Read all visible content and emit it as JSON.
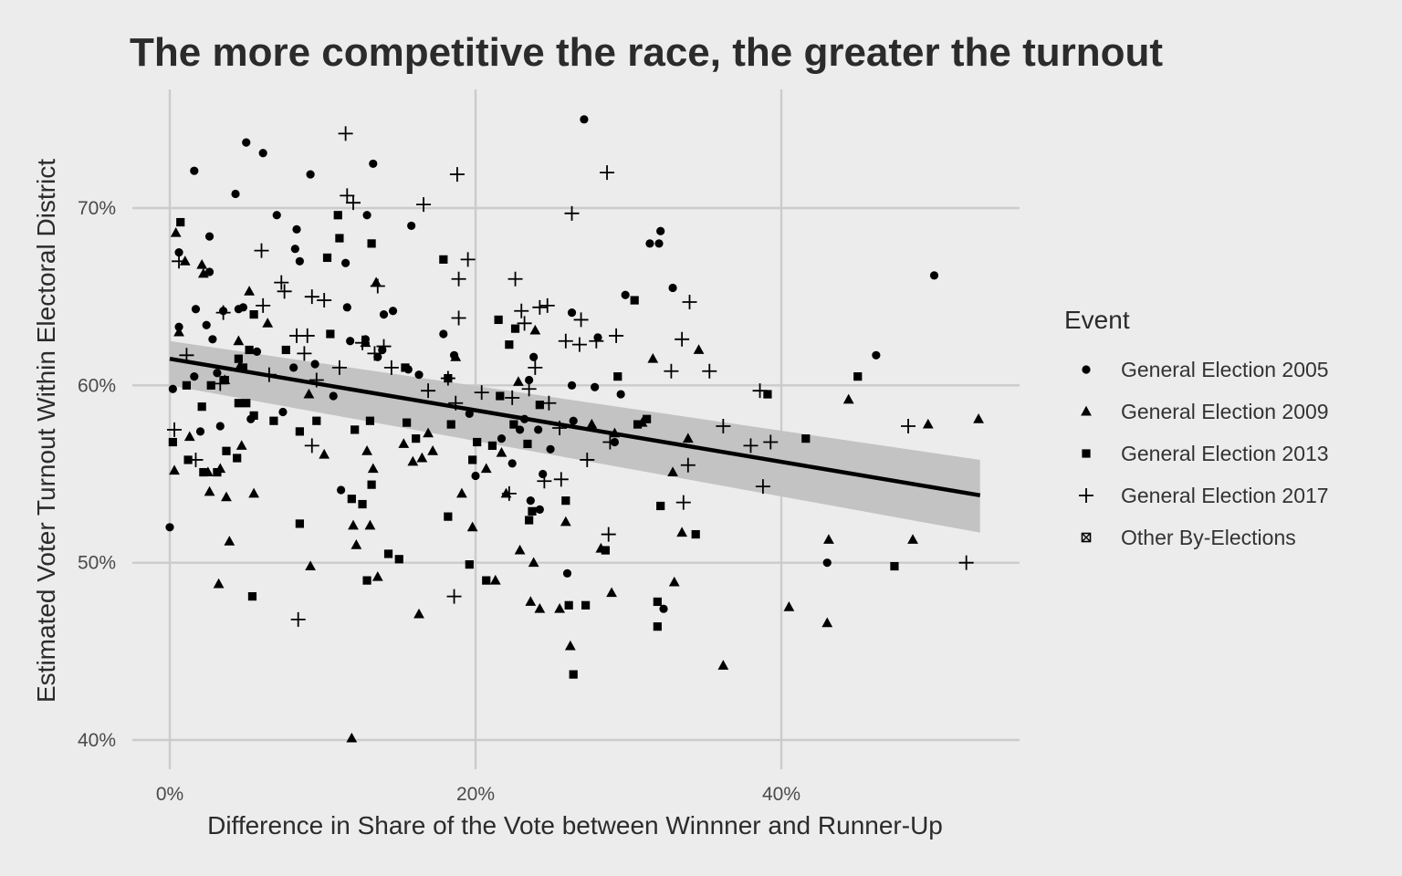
{
  "chart_data": {
    "type": "scatter",
    "title": "The more competitive the race, the greater the turnout",
    "xlabel": "Difference in Share of the Vote between Winnner and Runner-Up",
    "ylabel": "Estimated Voter Turnout Within Electoral District",
    "xlim": [
      0,
      55
    ],
    "ylim": [
      40,
      75
    ],
    "x_ticks": [
      0,
      20,
      40
    ],
    "x_tick_labels": [
      "0%",
      "20%",
      "40%"
    ],
    "y_ticks": [
      40,
      50,
      60,
      70
    ],
    "y_tick_labels": [
      "40%",
      "50%",
      "60%",
      "70%"
    ],
    "grid": true,
    "legend": {
      "title": "Event",
      "placement": "right",
      "entries": [
        {
          "label": "General Election 2005",
          "shape": "circle"
        },
        {
          "label": "General Election 2009",
          "shape": "triangle"
        },
        {
          "label": "General Election 2013",
          "shape": "square"
        },
        {
          "label": "General Election 2017",
          "shape": "plus"
        },
        {
          "label": "Other By-Elections",
          "shape": "boxed-x"
        }
      ]
    },
    "trend": {
      "method": "linear",
      "x": [
        0,
        53
      ],
      "y": [
        61.5,
        53.8
      ],
      "ci_lower": [
        60.0,
        51.7
      ],
      "ci_upper": [
        62.5,
        55.8
      ]
    },
    "colors": {
      "background": "#ececec",
      "points": "#000000",
      "ribbon": "#c3c3c3",
      "grid": "#cbcbcb"
    },
    "series": [
      {
        "name": "General Election 2005",
        "shape": "circle",
        "points": [
          [
            0,
            52
          ],
          [
            0.2,
            59.8
          ],
          [
            0.6,
            63.3
          ],
          [
            0.6,
            67.5
          ],
          [
            1.6,
            72.1
          ],
          [
            1.6,
            60.5
          ],
          [
            1.7,
            64.3
          ],
          [
            2,
            57.4
          ],
          [
            2.4,
            63.4
          ],
          [
            2.6,
            66.4
          ],
          [
            2.6,
            68.4
          ],
          [
            2.8,
            62.6
          ],
          [
            3.1,
            60.7
          ],
          [
            3.3,
            57.7
          ],
          [
            3.5,
            64.2
          ],
          [
            4.3,
            70.8
          ],
          [
            4.5,
            64.3
          ],
          [
            4.8,
            64.4
          ],
          [
            5.0,
            73.7
          ],
          [
            5.3,
            58.1
          ],
          [
            5.7,
            61.9
          ],
          [
            6.1,
            73.1
          ],
          [
            7.0,
            69.6
          ],
          [
            7.4,
            58.5
          ],
          [
            8.1,
            61.0
          ],
          [
            8.2,
            67.7
          ],
          [
            8.3,
            68.8
          ],
          [
            8.5,
            67.0
          ],
          [
            9.2,
            71.9
          ],
          [
            9.5,
            61.2
          ],
          [
            10.7,
            59.4
          ],
          [
            11.2,
            54.1
          ],
          [
            11.5,
            66.9
          ],
          [
            11.6,
            64.4
          ],
          [
            11.8,
            62.5
          ],
          [
            12.8,
            62.6
          ],
          [
            12.9,
            69.6
          ],
          [
            13.3,
            72.5
          ],
          [
            13.6,
            61.6
          ],
          [
            13.9,
            62.0
          ],
          [
            14.0,
            64.0
          ],
          [
            14.6,
            64.2
          ],
          [
            15.6,
            60.9
          ],
          [
            15.8,
            69.0
          ],
          [
            16.3,
            60.6
          ],
          [
            17.9,
            62.9
          ],
          [
            18.6,
            61.7
          ],
          [
            19.6,
            58.4
          ],
          [
            20.0,
            54.9
          ],
          [
            21.7,
            57.0
          ],
          [
            22.4,
            55.6
          ],
          [
            22.9,
            57.5
          ],
          [
            23.2,
            58.1
          ],
          [
            23.5,
            60.3
          ],
          [
            23.6,
            53.5
          ],
          [
            23.8,
            61.6
          ],
          [
            24.1,
            57.5
          ],
          [
            24.2,
            53.0
          ],
          [
            24.4,
            55.0
          ],
          [
            24.9,
            56.4
          ],
          [
            26.0,
            49.4
          ],
          [
            26.3,
            60.0
          ],
          [
            26.3,
            64.1
          ],
          [
            26.4,
            58.0
          ],
          [
            27.1,
            75.0
          ],
          [
            27.8,
            59.9
          ],
          [
            28.0,
            62.7
          ],
          [
            29.1,
            56.8
          ],
          [
            29.5,
            59.5
          ],
          [
            29.8,
            65.1
          ],
          [
            31.4,
            68.0
          ],
          [
            32.0,
            68.0
          ],
          [
            32.1,
            68.7
          ],
          [
            32.3,
            47.4
          ],
          [
            32.9,
            65.5
          ],
          [
            43.0,
            50.0
          ],
          [
            46.2,
            61.7
          ],
          [
            50.0,
            66.2
          ]
        ]
      },
      {
        "name": "General Election 2009",
        "shape": "triangle",
        "points": [
          [
            0.3,
            55.2
          ],
          [
            0.4,
            68.6
          ],
          [
            0.6,
            63.0
          ],
          [
            1.0,
            67.0
          ],
          [
            1.3,
            57.1
          ],
          [
            2.1,
            66.8
          ],
          [
            2.2,
            66.3
          ],
          [
            2.5,
            55.1
          ],
          [
            2.6,
            54.0
          ],
          [
            3.2,
            48.8
          ],
          [
            3.3,
            55.3
          ],
          [
            3.6,
            60.3
          ],
          [
            3.7,
            53.7
          ],
          [
            3.9,
            51.2
          ],
          [
            4.5,
            62.5
          ],
          [
            4.6,
            61.1
          ],
          [
            4.7,
            56.6
          ],
          [
            5.2,
            65.3
          ],
          [
            5.5,
            53.9
          ],
          [
            6.4,
            63.5
          ],
          [
            9.1,
            59.5
          ],
          [
            9.2,
            49.8
          ],
          [
            10.1,
            56.1
          ],
          [
            11.9,
            40.1
          ],
          [
            12.0,
            52.1
          ],
          [
            12.2,
            51.0
          ],
          [
            12.8,
            62.4
          ],
          [
            12.9,
            56.3
          ],
          [
            13.1,
            52.1
          ],
          [
            13.3,
            55.3
          ],
          [
            13.5,
            65.8
          ],
          [
            13.6,
            49.2
          ],
          [
            15.3,
            56.7
          ],
          [
            15.9,
            55.7
          ],
          [
            16.3,
            47.1
          ],
          [
            16.5,
            55.9
          ],
          [
            16.9,
            57.3
          ],
          [
            17.2,
            56.3
          ],
          [
            18.7,
            61.6
          ],
          [
            19.1,
            53.9
          ],
          [
            19.8,
            52.0
          ],
          [
            20.7,
            55.3
          ],
          [
            21.3,
            49.0
          ],
          [
            21.7,
            56.2
          ],
          [
            22.0,
            53.9
          ],
          [
            22.8,
            60.2
          ],
          [
            22.9,
            50.7
          ],
          [
            23.6,
            47.8
          ],
          [
            23.8,
            50.0
          ],
          [
            23.9,
            63.1
          ],
          [
            24.2,
            47.4
          ],
          [
            25.5,
            47.4
          ],
          [
            25.9,
            52.3
          ],
          [
            26.2,
            45.3
          ],
          [
            27.6,
            57.8
          ],
          [
            28.2,
            50.8
          ],
          [
            28.9,
            48.3
          ],
          [
            29.1,
            57.3
          ],
          [
            30.9,
            57.9
          ],
          [
            31.6,
            61.5
          ],
          [
            32.9,
            55.1
          ],
          [
            33.0,
            48.9
          ],
          [
            33.5,
            51.7
          ],
          [
            33.9,
            57.0
          ],
          [
            34.6,
            62.0
          ],
          [
            36.2,
            44.2
          ],
          [
            40.5,
            47.5
          ],
          [
            43.0,
            46.6
          ],
          [
            43.1,
            51.3
          ],
          [
            44.4,
            59.2
          ],
          [
            48.6,
            51.3
          ],
          [
            49.6,
            57.8
          ],
          [
            52.9,
            58.1
          ]
        ]
      },
      {
        "name": "General Election 2013",
        "shape": "square",
        "points": [
          [
            0.2,
            56.8
          ],
          [
            0.7,
            69.2
          ],
          [
            1.1,
            60.0
          ],
          [
            1.2,
            55.8
          ],
          [
            2.1,
            58.8
          ],
          [
            2.2,
            55.1
          ],
          [
            2.7,
            60.0
          ],
          [
            3.1,
            55.1
          ],
          [
            3.6,
            60.3
          ],
          [
            3.7,
            56.3
          ],
          [
            4.4,
            55.9
          ],
          [
            4.5,
            59.0
          ],
          [
            4.5,
            61.5
          ],
          [
            4.8,
            61.0
          ],
          [
            5.0,
            59.0
          ],
          [
            5.2,
            62.0
          ],
          [
            5.4,
            48.1
          ],
          [
            5.5,
            58.3
          ],
          [
            5.5,
            64.0
          ],
          [
            6.8,
            58.0
          ],
          [
            7.6,
            62.0
          ],
          [
            8.5,
            52.2
          ],
          [
            8.5,
            57.4
          ],
          [
            9.6,
            58.0
          ],
          [
            10.3,
            67.2
          ],
          [
            10.5,
            62.9
          ],
          [
            11.0,
            69.6
          ],
          [
            11.1,
            68.3
          ],
          [
            11.9,
            53.6
          ],
          [
            12.1,
            57.5
          ],
          [
            12.6,
            53.3
          ],
          [
            12.9,
            49.0
          ],
          [
            13.1,
            58.0
          ],
          [
            13.2,
            54.4
          ],
          [
            13.2,
            68.0
          ],
          [
            14.3,
            50.5
          ],
          [
            15.0,
            50.2
          ],
          [
            15.4,
            61.0
          ],
          [
            15.5,
            57.9
          ],
          [
            16.1,
            57.0
          ],
          [
            17.9,
            67.1
          ],
          [
            18.2,
            52.6
          ],
          [
            18.2,
            60.4
          ],
          [
            18.4,
            57.8
          ],
          [
            19.6,
            49.9
          ],
          [
            19.8,
            55.8
          ],
          [
            20.1,
            56.8
          ],
          [
            20.7,
            49.0
          ],
          [
            21.1,
            56.6
          ],
          [
            21.5,
            63.7
          ],
          [
            21.6,
            59.4
          ],
          [
            22.2,
            62.3
          ],
          [
            22.5,
            57.8
          ],
          [
            22.6,
            63.2
          ],
          [
            23.4,
            56.7
          ],
          [
            23.5,
            52.4
          ],
          [
            23.7,
            52.9
          ],
          [
            24.2,
            58.9
          ],
          [
            25.9,
            53.5
          ],
          [
            26.1,
            47.6
          ],
          [
            26.4,
            43.7
          ],
          [
            27.2,
            47.6
          ],
          [
            28.5,
            50.7
          ],
          [
            29.3,
            60.5
          ],
          [
            30.4,
            64.8
          ],
          [
            30.6,
            57.8
          ],
          [
            31.2,
            58.1
          ],
          [
            31.9,
            46.4
          ],
          [
            31.9,
            47.8
          ],
          [
            32.1,
            53.2
          ],
          [
            34.4,
            51.6
          ],
          [
            39.1,
            59.5
          ],
          [
            41.6,
            57.0
          ],
          [
            45.0,
            60.5
          ],
          [
            47.4,
            49.8
          ]
        ]
      },
      {
        "name": "General Election 2017",
        "shape": "plus",
        "points": [
          [
            0.3,
            57.5
          ],
          [
            0.6,
            67.0
          ],
          [
            1.1,
            61.7
          ],
          [
            1.7,
            55.8
          ],
          [
            3.3,
            60.1
          ],
          [
            3.5,
            64.1
          ],
          [
            6.0,
            67.6
          ],
          [
            6.1,
            64.5
          ],
          [
            6.5,
            60.6
          ],
          [
            7.3,
            65.8
          ],
          [
            7.5,
            65.3
          ],
          [
            8.3,
            62.8
          ],
          [
            8.4,
            46.8
          ],
          [
            8.8,
            61.8
          ],
          [
            9.0,
            62.8
          ],
          [
            9.3,
            65.0
          ],
          [
            9.3,
            56.6
          ],
          [
            9.6,
            60.3
          ],
          [
            10.1,
            64.8
          ],
          [
            11.1,
            61.0
          ],
          [
            11.5,
            74.2
          ],
          [
            11.6,
            70.7
          ],
          [
            12.0,
            70.3
          ],
          [
            12.6,
            62.4
          ],
          [
            13.4,
            61.8
          ],
          [
            13.6,
            65.6
          ],
          [
            14.0,
            62.2
          ],
          [
            14.5,
            61.0
          ],
          [
            16.6,
            70.2
          ],
          [
            16.9,
            59.7
          ],
          [
            18.2,
            60.4
          ],
          [
            18.6,
            48.1
          ],
          [
            18.7,
            59.0
          ],
          [
            18.8,
            71.9
          ],
          [
            18.9,
            66.0
          ],
          [
            18.9,
            63.8
          ],
          [
            19.5,
            67.1
          ],
          [
            20.4,
            59.6
          ],
          [
            22.2,
            53.9
          ],
          [
            22.4,
            59.3
          ],
          [
            22.6,
            66.0
          ],
          [
            23.0,
            64.2
          ],
          [
            23.2,
            63.5
          ],
          [
            23.5,
            59.8
          ],
          [
            23.9,
            61.0
          ],
          [
            24.2,
            64.4
          ],
          [
            24.5,
            54.6
          ],
          [
            24.7,
            64.5
          ],
          [
            24.8,
            59.0
          ],
          [
            25.5,
            57.6
          ],
          [
            25.6,
            54.7
          ],
          [
            25.9,
            62.5
          ],
          [
            26.3,
            69.7
          ],
          [
            26.8,
            62.3
          ],
          [
            26.9,
            63.7
          ],
          [
            27.3,
            55.8
          ],
          [
            27.9,
            62.5
          ],
          [
            28.6,
            72.0
          ],
          [
            28.7,
            51.6
          ],
          [
            28.8,
            56.8
          ],
          [
            29.2,
            62.8
          ],
          [
            32.8,
            60.8
          ],
          [
            33.5,
            62.6
          ],
          [
            33.6,
            53.4
          ],
          [
            33.9,
            55.5
          ],
          [
            34.0,
            64.7
          ],
          [
            35.3,
            60.8
          ],
          [
            36.2,
            57.7
          ],
          [
            38.0,
            56.6
          ],
          [
            38.6,
            59.7
          ],
          [
            38.8,
            54.3
          ],
          [
            39.3,
            56.8
          ],
          [
            48.3,
            57.7
          ],
          [
            52.1,
            50.0
          ]
        ]
      }
    ]
  }
}
